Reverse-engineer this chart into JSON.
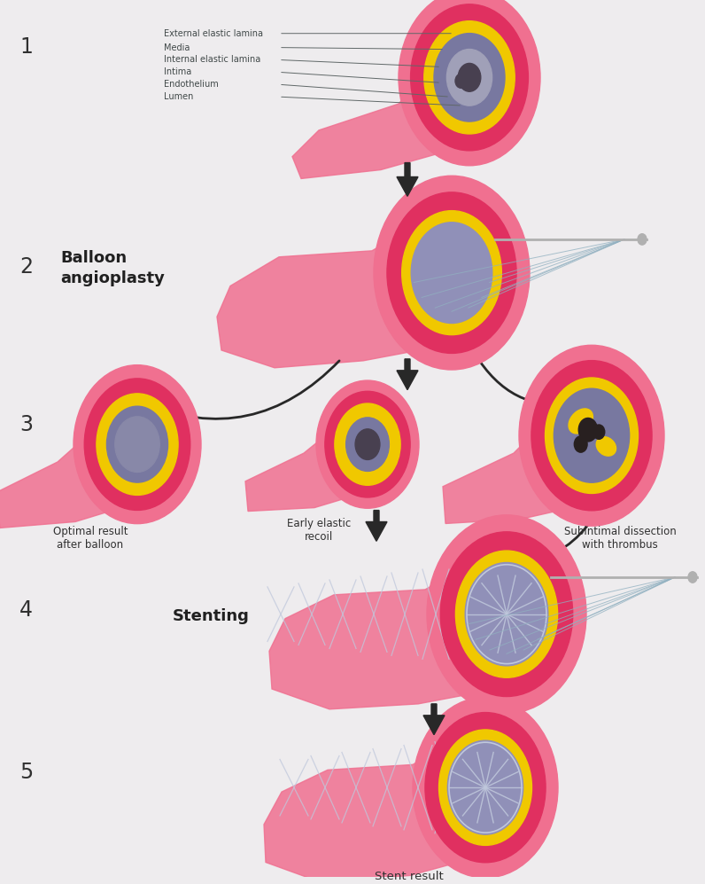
{
  "bg_color": "#eeecee",
  "step_labels": [
    "1",
    "2",
    "3",
    "4",
    "5"
  ],
  "balloon_label": "Balloon\nangioplasty",
  "stenting_label": "Stenting",
  "annotation_labels": [
    "External elastic lamina",
    "Media",
    "Internal elastic lamina",
    "Intima",
    "Endothelium",
    "Lumen"
  ],
  "result_labels": [
    "Optimal result\nafter balloon",
    "Early elastic\nrecoil",
    "Subintimal dissection\nwith thrombus"
  ],
  "stent_result_label": "Stent result",
  "colors": {
    "outer_vessel": "#f07090",
    "vessel_wall": "#e03060",
    "yellow_layer": "#f0c800",
    "plaque": "#7878a0",
    "plaque_dark": "#484050",
    "lumen": "#9090b8",
    "vessel_tail": "#f090a8",
    "vessel_tail2": "#f8b8c8",
    "stent_line": "#c0c8dc",
    "catheter_line": "#90b0c0",
    "catheter_tip": "#b0b0b0",
    "arrow_dark": "#282828"
  }
}
